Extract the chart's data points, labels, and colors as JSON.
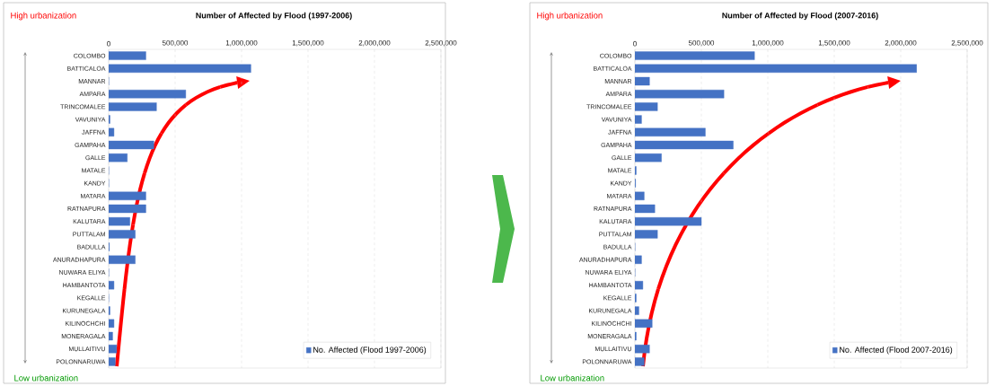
{
  "chart_data": [
    {
      "type": "bar",
      "orientation": "horizontal",
      "title": "Number of Affected by Flood (1997-2006)",
      "categories": [
        "COLOMBO",
        "BATTICALOA",
        "MANNAR",
        "AMPARA",
        "TRINCOMALEE",
        "VAVUNIYA",
        "JAFFNA",
        "GAMPAHA",
        "GALLE",
        "MATALE",
        "KANDY",
        "MATARA",
        "RATNAPURA",
        "KALUTARA",
        "PUTTALAM",
        "BADULLA",
        "ANURADHAPURA",
        "NUWARA ELIYA",
        "HAMBANTOTA",
        "KEGALLE",
        "KURUNEGALA",
        "KILINOCHCHI",
        "MONERAGALA",
        "MULLAITIVU",
        "POLONNARUWA"
      ],
      "series": [
        {
          "name": "No. Affected (Flood 1997-2006)",
          "color": "#4472c4",
          "values": [
            280000,
            1070000,
            0,
            580000,
            360000,
            10000,
            40000,
            340000,
            140000,
            0,
            0,
            280000,
            280000,
            160000,
            200000,
            5000,
            200000,
            0,
            40000,
            0,
            10000,
            40000,
            30000,
            60000,
            50000
          ]
        }
      ],
      "xlim": [
        0,
        2500000
      ],
      "xticks": [
        0,
        {
          "value": 500000,
          "label": "500,000"
        },
        {
          "value": 1000000,
          "label": "1,000,000"
        },
        {
          "value": 1500000,
          "label": "1,500,000"
        },
        {
          "value": 2000000,
          "label": "2,000,000"
        },
        {
          "value": 2500000,
          "label": "2,500,000"
        }
      ],
      "grid": "x",
      "legend": "bottom right",
      "annotations": [
        "High urbanization",
        "Low urbanization"
      ]
    },
    {
      "type": "bar",
      "orientation": "horizontal",
      "title": "Number of Affected by Flood (2007-2016)",
      "categories": [
        "COLOMBO",
        "BATTICALOA",
        "MANNAR",
        "AMPARA",
        "TRINCOMALEE",
        "VAVUNIYA",
        "JAFFNA",
        "GAMPAHA",
        "GALLE",
        "MATALE",
        "KANDY",
        "MATARA",
        "RATNAPURA",
        "KALUTARA",
        "PUTTALAM",
        "BADULLA",
        "ANURADHAPURA",
        "NUWARA ELIYA",
        "HAMBANTOTA",
        "KEGALLE",
        "KURUNEGALA",
        "KILINOCHCHI",
        "MONERAGALA",
        "MULLAITIVU",
        "POLONNARUWA"
      ],
      "series": [
        {
          "name": "No. Affected (Flood 2007-2016)",
          "color": "#4472c4",
          "values": [
            900000,
            2120000,
            110000,
            670000,
            170000,
            50000,
            530000,
            740000,
            200000,
            10000,
            5000,
            70000,
            150000,
            500000,
            170000,
            0,
            50000,
            0,
            60000,
            10000,
            30000,
            130000,
            10000,
            110000,
            70000
          ]
        }
      ],
      "xlim": [
        0,
        2500000
      ],
      "xticks": [
        0,
        {
          "value": 500000,
          "label": "500,000"
        },
        {
          "value": 1000000,
          "label": "1,000,000"
        },
        {
          "value": 1500000,
          "label": "1,500,000"
        },
        {
          "value": 2000000,
          "label": "2,000,000"
        },
        {
          "value": 2500000,
          "label": "2,500,000"
        }
      ],
      "grid": "x",
      "legend": "bottom right",
      "annotations": [
        "High urbanization",
        "Low urbanization"
      ]
    }
  ]
}
